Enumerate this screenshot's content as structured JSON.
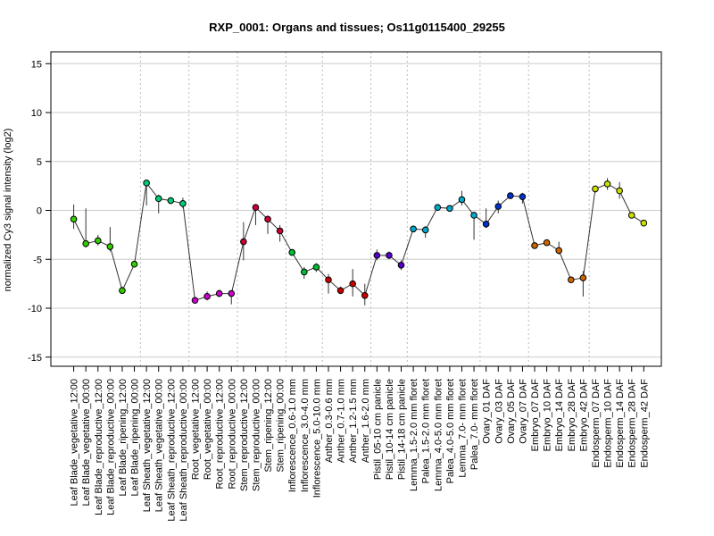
{
  "chart_data": {
    "type": "line",
    "title": "RXP_0001: Organs and tissues; Os11g0115400_29255",
    "xlabel": "",
    "ylabel": "normalized Cy3 signal intensity (log2)",
    "ylim": [
      -16,
      16
    ],
    "yticks": [
      -15,
      -10,
      -5,
      0,
      5,
      10,
      15
    ],
    "grid": true,
    "categories": [
      "Leaf Blade_vegetative_12:00",
      "Leaf Blade_vegetative_00:00",
      "Leaf Blade_reproductive_12:00",
      "Leaf Blade_reproductive_00:00",
      "Leaf Blade_ripening_12:00",
      "Leaf Blade_ripening_00:00",
      "Leaf Sheath_vegetative_12:00",
      "Leaf Sheath_vegetative_00:00",
      "Leaf Sheath_reproductive_12:00",
      "Leaf Sheath_reproductive_00:00",
      "Root_vegetative_12:00",
      "Root_vegetative_00:00",
      "Root_reproductive_12:00",
      "Root_reproductive_00:00",
      "Stem_reproductive_12:00",
      "Stem_reproductive_00:00",
      "Stem_ripening_12:00",
      "Stem_ripening_00:00",
      "Inflorescence_0.6-1.0 mm",
      "Inflorescence_3.0-4.0 mm",
      "Inflorescence_5.0-10.0 mm",
      "Anther_0.3-0.6 mm",
      "Anther_0.7-1.0 mm",
      "Anther_1.2-1.5 mm",
      "Anther_1.6-2.0 mm",
      "Pistil_05-10 cm panicle",
      "Pistil_10-14 cm panicle",
      "Pistil_14-18 cm panicle",
      "Lemma_1.5-2.0 mm floret",
      "Palea_1.5-2.0 mm floret",
      "Lemma_4.0-5.0 mm floret",
      "Palea_4.0-5.0 mm floret",
      "Lemma_7.0- mm floret",
      "Palea_7.0- mm floret",
      "Ovary_01 DAF",
      "Ovary_03 DAF",
      "Ovary_05 DAF",
      "Ovary_07 DAF",
      "Embryo_07 DAF",
      "Embryo_10 DAF",
      "Embryo_14 DAF",
      "Embryo_28 DAF",
      "Embryo_42 DAF",
      "Endosperm_07 DAF",
      "Endosperm_10 DAF",
      "Endosperm_14 DAF",
      "Endosperm_28 DAF",
      "Endosperm_42 DAF"
    ],
    "values": [
      -0.9,
      -3.4,
      -3.1,
      -3.7,
      -8.2,
      -5.5,
      2.8,
      1.2,
      1.0,
      0.7,
      -9.2,
      -8.8,
      -8.5,
      -8.5,
      -3.2,
      0.3,
      -0.9,
      -2.1,
      -4.3,
      -6.3,
      -5.8,
      -7.1,
      -8.2,
      -7.5,
      -8.7,
      -4.6,
      -4.6,
      -5.6,
      -1.9,
      -2.0,
      0.3,
      0.2,
      1.1,
      -0.5,
      -1.4,
      0.4,
      1.5,
      1.4,
      -3.6,
      -3.3,
      -4.1,
      -7.1,
      -6.9,
      2.2,
      2.7,
      2.0,
      -0.5,
      -1.3
    ],
    "err_low": [
      -1.9,
      -3.8,
      -3.6,
      -4.2,
      -8.5,
      -5.8,
      0.5,
      -0.3,
      0.7,
      0.2,
      -9.4,
      -9.2,
      -8.8,
      -9.6,
      -5.1,
      -1.5,
      -2.4,
      -3.2,
      -4.5,
      -7.0,
      -6.3,
      -8.5,
      -8.4,
      -8.8,
      -9.7,
      -5.1,
      -5.0,
      -6.1,
      -2.2,
      -2.8,
      0.0,
      0.0,
      0.5,
      -3.0,
      -1.8,
      -0.3,
      1.2,
      0.7,
      -3.8,
      -3.5,
      -4.5,
      -7.4,
      -8.8,
      1.8,
      2.1,
      1.2,
      -0.8,
      -1.6
    ],
    "err_high": [
      0.6,
      0.2,
      -2.5,
      -1.7,
      -7.8,
      -5.2,
      3.0,
      1.6,
      1.3,
      1.3,
      -8.9,
      -8.3,
      -8.1,
      -8.2,
      -1.2,
      0.5,
      -0.6,
      -1.5,
      -4.0,
      -5.8,
      -5.4,
      -6.5,
      -7.8,
      -6.0,
      -7.5,
      -4.0,
      -4.2,
      -5.1,
      -1.6,
      -1.6,
      0.6,
      0.4,
      2.0,
      -0.2,
      0.2,
      1.0,
      1.8,
      1.8,
      -3.4,
      -3.1,
      -3.2,
      -6.8,
      -6.2,
      2.5,
      3.3,
      2.9,
      -0.2,
      -1.1
    ],
    "point_colors": [
      "#33cc00",
      "#33cc00",
      "#33cc00",
      "#33cc00",
      "#33cc00",
      "#33cc00",
      "#00cc77",
      "#00cc77",
      "#00cc77",
      "#00cc77",
      "#cc00cc",
      "#cc00cc",
      "#cc00cc",
      "#cc00cc",
      "#cc0033",
      "#cc0033",
      "#cc0033",
      "#cc0033",
      "#00bb33",
      "#00bb33",
      "#00bb33",
      "#cc0000",
      "#cc0000",
      "#cc0000",
      "#cc0000",
      "#5500cc",
      "#5500cc",
      "#5500cc",
      "#00aacc",
      "#00aacc",
      "#00aacc",
      "#00aacc",
      "#00aacc",
      "#00aacc",
      "#0033cc",
      "#0033cc",
      "#0033cc",
      "#0033cc",
      "#cc6600",
      "#cc6600",
      "#cc6600",
      "#cc6600",
      "#cc6600",
      "#ccdd00",
      "#ccdd00",
      "#ccdd00",
      "#ccdd00",
      "#ccdd00"
    ],
    "vertical_separators_after_index": [
      5,
      9,
      13,
      17,
      20,
      24,
      27,
      33,
      37,
      42
    ],
    "colors": {
      "line": "#333333",
      "grid": "#cccccc",
      "separator": "#bbbbbb",
      "frame": "#000000"
    }
  }
}
